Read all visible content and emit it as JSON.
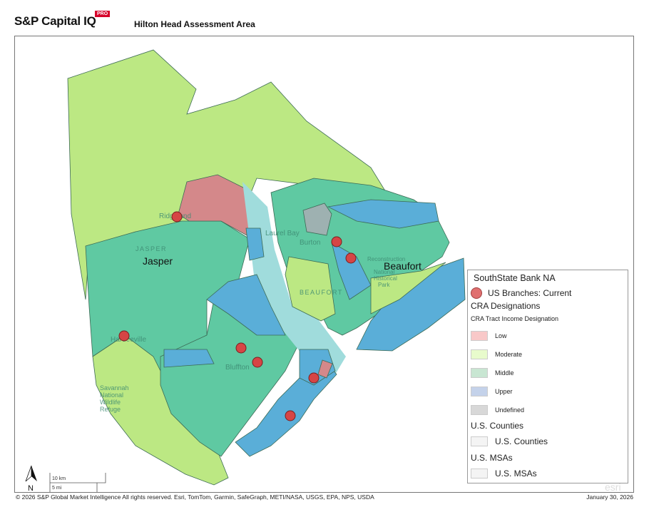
{
  "header": {
    "brand": "S&P Capital IQ",
    "brand_badge": "PRO",
    "title": "Hilton Head Assessment Area"
  },
  "colors": {
    "low": "#d4888a",
    "moderate": "#bce883",
    "middle": "#5fc9a2",
    "upper": "#5aaed8",
    "undefined": "#9eb1b1",
    "water": "#a0dcdc",
    "branch": "#d64545"
  },
  "map_labels": {
    "ridgeland": "Ridgeland",
    "jasper_county": "JASPER",
    "jasper": "Jasper",
    "laurel_bay": "Laurel Bay",
    "burton": "Burton",
    "beaufort": "Beaufort",
    "beaufort_county": "BEAUFORT",
    "hardeeville": "Hardeeville",
    "bluffton": "Bluffton",
    "refuge": [
      "Savannah",
      "National",
      "Wildlife",
      "Refuge"
    ],
    "park": [
      "Reconstruction",
      "National",
      "Historical",
      "Park"
    ]
  },
  "legend": {
    "title": "SouthState Bank NA",
    "branches": "US Branches: Current",
    "cra_heading": "CRA Designations",
    "cra_sub": "CRA Tract Income Designation",
    "categories": [
      "Low",
      "Moderate",
      "Middle",
      "Upper",
      "Undefined"
    ],
    "counties_heading": "U.S. Counties",
    "counties_item": "U.S. Counties",
    "msas_heading": "U.S. MSAs",
    "msas_item": "U.S. MSAs"
  },
  "scale": {
    "km": "10 km",
    "mi": "5 mi"
  },
  "north": "N",
  "footer": {
    "copyright": "© 2026  S&P Global Market Intelligence  All rights reserved.  Esri, TomTom, Garmin, SafeGraph, METI/NASA, USGS, EPA, NPS, USDA",
    "date": "January 30, 2026",
    "esri": "esri"
  }
}
